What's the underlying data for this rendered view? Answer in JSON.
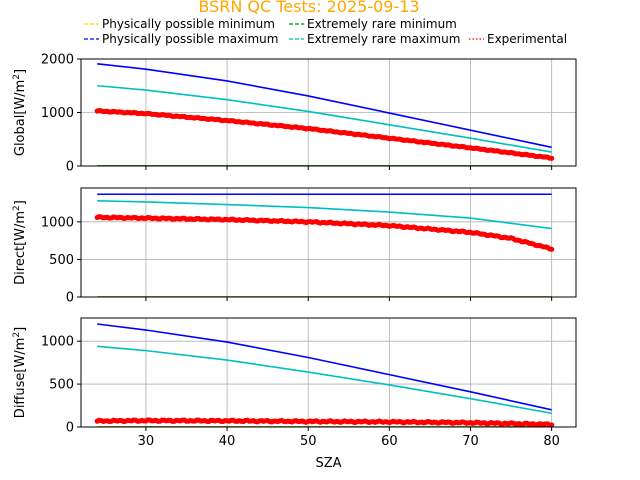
{
  "chart_data": [
    {
      "type": "line",
      "title": "BSRN QC Tests: 2025-09-13",
      "ylabel": "Global[W/m²]",
      "xlim": [
        22,
        83
      ],
      "ylim": [
        0,
        2000
      ],
      "yticks": [
        0,
        1000,
        2000
      ],
      "grid": true,
      "series": [
        {
          "name": "Physically possible minimum",
          "x": [
            24,
            80
          ],
          "y": [
            -4,
            -4
          ]
        },
        {
          "name": "Extremely rare minimum",
          "x": [
            24,
            80
          ],
          "y": [
            2,
            2
          ]
        },
        {
          "name": "Physically possible maximum",
          "x": [
            24,
            30,
            40,
            50,
            60,
            70,
            80
          ],
          "y": [
            1910,
            1810,
            1590,
            1310,
            990,
            670,
            350
          ]
        },
        {
          "name": "Extremely rare maximum",
          "x": [
            24,
            30,
            40,
            50,
            60,
            70,
            80
          ],
          "y": [
            1500,
            1420,
            1240,
            1020,
            770,
            520,
            260
          ]
        },
        {
          "name": "Experimental",
          "x": [
            24,
            30,
            40,
            50,
            60,
            70,
            80
          ],
          "y": [
            1030,
            980,
            850,
            700,
            520,
            340,
            150
          ]
        }
      ]
    },
    {
      "type": "line",
      "ylabel": "Direct[W/m²]",
      "xlim": [
        22,
        83
      ],
      "ylim": [
        0,
        1450
      ],
      "yticks": [
        0,
        500,
        1000
      ],
      "grid": true,
      "series": [
        {
          "name": "Physically possible minimum",
          "x": [
            24,
            80
          ],
          "y": [
            0,
            0
          ]
        },
        {
          "name": "Extremely rare minimum",
          "x": [
            24,
            80
          ],
          "y": [
            0,
            0
          ]
        },
        {
          "name": "Physically possible maximum",
          "x": [
            24,
            80
          ],
          "y": [
            1367,
            1367
          ]
        },
        {
          "name": "Extremely rare maximum",
          "x": [
            24,
            30,
            40,
            50,
            60,
            70,
            80
          ],
          "y": [
            1280,
            1265,
            1230,
            1190,
            1130,
            1050,
            910
          ]
        },
        {
          "name": "Experimental",
          "x": [
            24,
            30,
            40,
            50,
            60,
            70,
            75,
            80
          ],
          "y": [
            1060,
            1050,
            1030,
            1000,
            950,
            860,
            780,
            640
          ]
        }
      ]
    },
    {
      "type": "line",
      "ylabel": "Diffuse[W/m²]",
      "xlabel": "SZA",
      "xlim": [
        22,
        83
      ],
      "ylim": [
        0,
        1270
      ],
      "yticks": [
        0,
        500,
        1000
      ],
      "xticks": [
        30,
        40,
        50,
        60,
        70,
        80
      ],
      "grid": true,
      "series": [
        {
          "name": "Physically possible minimum",
          "x": [
            24,
            80
          ],
          "y": [
            0,
            0
          ]
        },
        {
          "name": "Extremely rare minimum",
          "x": [
            24,
            80
          ],
          "y": [
            0,
            0
          ]
        },
        {
          "name": "Physically possible maximum",
          "x": [
            24,
            30,
            40,
            50,
            60,
            70,
            80
          ],
          "y": [
            1200,
            1130,
            990,
            810,
            610,
            410,
            200
          ]
        },
        {
          "name": "Extremely rare maximum",
          "x": [
            24,
            30,
            40,
            50,
            60,
            70,
            80
          ],
          "y": [
            940,
            890,
            780,
            640,
            490,
            330,
            160
          ]
        },
        {
          "name": "Experimental",
          "x": [
            24,
            30,
            40,
            50,
            60,
            70,
            80
          ],
          "y": [
            70,
            75,
            72,
            65,
            60,
            50,
            30
          ]
        }
      ]
    }
  ],
  "legend": [
    {
      "label": "Physically possible minimum",
      "color": "#ffd700",
      "style": "dashed"
    },
    {
      "label": "Extremely rare minimum",
      "color": "#008000",
      "style": "dashed"
    },
    {
      "label": "Physically possible maximum",
      "color": "#0000ff",
      "style": "dashed"
    },
    {
      "label": "Extremely rare maximum",
      "color": "#00bfbf",
      "style": "dashed"
    },
    {
      "label": "Experimental",
      "color": "#ff0000",
      "style": "dotted"
    }
  ],
  "colors": {
    "title": "#ffa500",
    "Physically possible minimum": "#ffd700",
    "Extremely rare minimum": "#008000",
    "Physically possible maximum": "#0000ff",
    "Extremely rare maximum": "#00bfbf",
    "Experimental": "#ff0000",
    "grid": "#b0b0b0"
  }
}
